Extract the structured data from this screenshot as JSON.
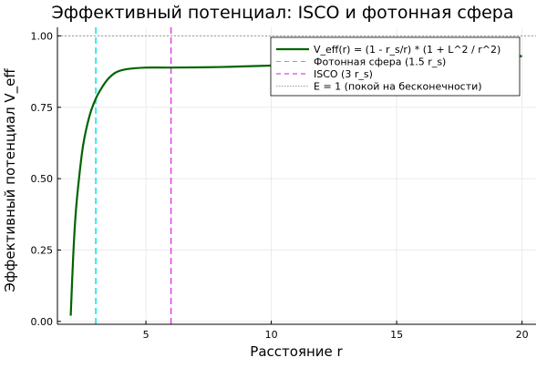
{
  "chart_data": {
    "type": "line",
    "title": "Эффективный потенциал: ISCO и фотонная сфера",
    "xlabel": "Расстояние r",
    "ylabel": "Эффективный потенциал V_eff",
    "xlim": [
      1.47,
      20.56
    ],
    "ylim": [
      -0.01,
      1.03
    ],
    "xticks": [
      5,
      10,
      15,
      20
    ],
    "yticks": [
      0.0,
      0.25,
      0.5,
      0.75,
      1.0
    ],
    "ytick_labels": [
      "0.00",
      "0.25",
      "0.50",
      "0.75",
      "1.00"
    ],
    "grid": true,
    "legend_position": "top-right",
    "series": [
      {
        "name": "V_eff(r) = (1 - r_s/r) * (1 + L^2 / r^2)",
        "color": "#006400",
        "style": "solid",
        "x": [
          2,
          2.1,
          2.2,
          2.33,
          2.5,
          2.75,
          3,
          3.25,
          3.5,
          3.8,
          4.2,
          5,
          6,
          8,
          10,
          12,
          15,
          18,
          20
        ],
        "y": [
          0.02,
          0.23,
          0.38,
          0.5,
          0.62,
          0.72,
          0.78,
          0.82,
          0.85,
          0.872,
          0.883,
          0.889,
          0.889,
          0.891,
          0.896,
          0.903,
          0.913,
          0.923,
          0.929
        ]
      }
    ],
    "vlines": [
      {
        "name": "Фотонная сфера (1.5 r_s)",
        "x": 3,
        "color": "#00e5ee",
        "style": "dashed"
      },
      {
        "name": "ISCO (3 r_s)",
        "x": 6,
        "color": "#e040e0",
        "style": "dashed"
      }
    ],
    "hlines": [
      {
        "name": "E = 1 (покой на бесконечности)",
        "y": 1,
        "color": "#999999",
        "style": "dotted"
      }
    ]
  }
}
